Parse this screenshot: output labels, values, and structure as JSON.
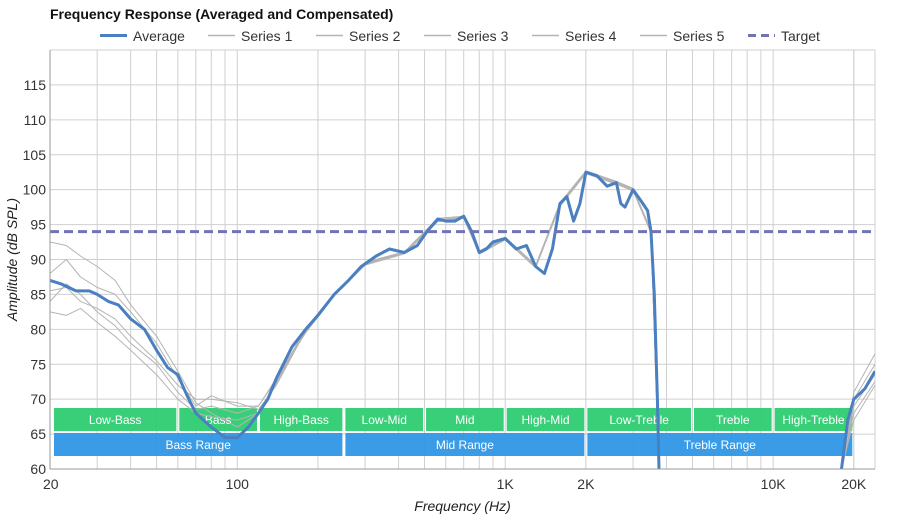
{
  "chart_data": {
    "type": "line",
    "title": "Frequency Response (Averaged and Compensated)",
    "xlabel": "Frequency (Hz)",
    "ylabel": "Amplitude (dB SPL)",
    "x_scale": "log",
    "xlim": [
      20,
      24000
    ],
    "ylim": [
      60,
      120
    ],
    "grid": true,
    "legend_position": "top",
    "x_tick_labels": [
      {
        "value": 20,
        "label": "20"
      },
      {
        "value": 100,
        "label": "100"
      },
      {
        "value": 1000,
        "label": "1K"
      },
      {
        "value": 2000,
        "label": "2K"
      },
      {
        "value": 10000,
        "label": "10K"
      },
      {
        "value": 20000,
        "label": "20K"
      }
    ],
    "y_ticks": [
      60,
      65,
      70,
      75,
      80,
      85,
      90,
      95,
      100,
      105,
      110,
      115
    ],
    "series": [
      {
        "name": "Average",
        "color": "#4a7fc1",
        "style": "solid",
        "role": "average",
        "points": [
          [
            20,
            87
          ],
          [
            22,
            86.5
          ],
          [
            25,
            85.5
          ],
          [
            28,
            85.5
          ],
          [
            30,
            85
          ],
          [
            33,
            84
          ],
          [
            36,
            83.5
          ],
          [
            40,
            81.5
          ],
          [
            45,
            80
          ],
          [
            50,
            77
          ],
          [
            55,
            74.5
          ],
          [
            60,
            73.5
          ],
          [
            65,
            70.5
          ],
          [
            70,
            68
          ],
          [
            80,
            66
          ],
          [
            90,
            64.5
          ],
          [
            100,
            64.5
          ],
          [
            110,
            66
          ],
          [
            120,
            68
          ],
          [
            130,
            70
          ],
          [
            140,
            73
          ],
          [
            160,
            77.5
          ],
          [
            180,
            80
          ],
          [
            200,
            82
          ],
          [
            230,
            85
          ],
          [
            260,
            87
          ],
          [
            290,
            89
          ],
          [
            330,
            90.5
          ],
          [
            370,
            91.5
          ],
          [
            420,
            91
          ],
          [
            470,
            92
          ],
          [
            510,
            94
          ],
          [
            560,
            95.8
          ],
          [
            600,
            95.5
          ],
          [
            650,
            95.5
          ],
          [
            700,
            96.2
          ],
          [
            750,
            94
          ],
          [
            800,
            91
          ],
          [
            850,
            91.5
          ],
          [
            900,
            92.5
          ],
          [
            1000,
            93
          ],
          [
            1100,
            91.5
          ],
          [
            1200,
            92
          ],
          [
            1300,
            89
          ],
          [
            1400,
            88
          ],
          [
            1500,
            91.5
          ],
          [
            1600,
            98
          ],
          [
            1700,
            99
          ],
          [
            1800,
            95.5
          ],
          [
            1900,
            98
          ],
          [
            2000,
            102.5
          ],
          [
            2200,
            102
          ],
          [
            2400,
            100.5
          ],
          [
            2600,
            101
          ],
          [
            2700,
            98
          ],
          [
            2800,
            97.5
          ],
          [
            3000,
            100
          ],
          [
            3200,
            98.5
          ],
          [
            3400,
            97
          ],
          [
            3500,
            94
          ],
          [
            3600,
            85
          ],
          [
            3700,
            70
          ],
          [
            3750,
            60
          ]
        ],
        "points_tail": [
          [
            18000,
            60
          ],
          [
            19000,
            67
          ],
          [
            20000,
            70
          ],
          [
            22000,
            71.5
          ],
          [
            24000,
            74
          ]
        ]
      },
      {
        "name": "Series 1",
        "color": "#b4b4b4",
        "style": "solid",
        "points": [
          [
            20,
            92.5
          ],
          [
            23,
            92
          ],
          [
            26,
            90.5
          ],
          [
            30,
            89
          ],
          [
            35,
            87
          ],
          [
            40,
            83.5
          ],
          [
            50,
            79
          ],
          [
            60,
            74
          ],
          [
            70,
            69.5
          ],
          [
            80,
            68
          ],
          [
            100,
            66
          ],
          [
            120,
            68
          ],
          [
            140,
            72.5
          ],
          [
            180,
            80
          ],
          [
            230,
            85
          ],
          [
            300,
            89.5
          ],
          [
            420,
            91
          ],
          [
            560,
            95.6
          ],
          [
            700,
            96
          ],
          [
            800,
            91
          ],
          [
            1000,
            93
          ],
          [
            1300,
            89
          ],
          [
            1600,
            97.6
          ],
          [
            2000,
            102.3
          ],
          [
            2600,
            100.8
          ],
          [
            3000,
            99.8
          ],
          [
            3500,
            94
          ],
          [
            3750,
            60
          ]
        ],
        "points_tail": [
          [
            18000,
            60
          ],
          [
            20000,
            71
          ],
          [
            24000,
            76.5
          ]
        ]
      },
      {
        "name": "Series 2",
        "color": "#b4b4b4",
        "style": "solid",
        "points": [
          [
            20,
            88
          ],
          [
            23,
            90
          ],
          [
            26,
            87.5
          ],
          [
            30,
            86
          ],
          [
            35,
            85
          ],
          [
            40,
            82.5
          ],
          [
            50,
            78
          ],
          [
            60,
            73
          ],
          [
            70,
            69
          ],
          [
            80,
            70.5
          ],
          [
            100,
            69
          ],
          [
            120,
            69
          ],
          [
            140,
            73
          ],
          [
            180,
            79.5
          ],
          [
            230,
            84.8
          ],
          [
            300,
            89.2
          ],
          [
            420,
            90.8
          ],
          [
            560,
            95.4
          ],
          [
            700,
            95.9
          ],
          [
            800,
            90.8
          ],
          [
            1000,
            92.8
          ],
          [
            1300,
            88.8
          ],
          [
            1600,
            97.8
          ],
          [
            2000,
            102.4
          ],
          [
            2600,
            100.9
          ],
          [
            3000,
            99.9
          ],
          [
            3500,
            93.8
          ],
          [
            3750,
            60
          ]
        ],
        "points_tail": [
          [
            18000,
            60
          ],
          [
            20000,
            70
          ],
          [
            24000,
            75
          ]
        ]
      },
      {
        "name": "Series 3",
        "color": "#b4b4b4",
        "style": "solid",
        "points": [
          [
            20,
            85.5
          ],
          [
            23,
            86
          ],
          [
            26,
            84
          ],
          [
            30,
            83
          ],
          [
            35,
            81.5
          ],
          [
            40,
            79
          ],
          [
            50,
            75.5
          ],
          [
            60,
            72
          ],
          [
            70,
            70
          ],
          [
            80,
            70
          ],
          [
            100,
            69.5
          ],
          [
            120,
            68.5
          ],
          [
            140,
            72
          ],
          [
            180,
            79.8
          ],
          [
            230,
            84.9
          ],
          [
            300,
            89.3
          ],
          [
            420,
            90.9
          ],
          [
            560,
            95.7
          ],
          [
            700,
            96.1
          ],
          [
            800,
            91.1
          ],
          [
            1000,
            93.1
          ],
          [
            1300,
            89.1
          ],
          [
            1600,
            97.9
          ],
          [
            2000,
            102.6
          ],
          [
            2600,
            101.1
          ],
          [
            3000,
            100.1
          ],
          [
            3500,
            94.1
          ],
          [
            3750,
            60
          ]
        ],
        "points_tail": [
          [
            18000,
            60
          ],
          [
            20000,
            69
          ],
          [
            24000,
            73.5
          ]
        ]
      },
      {
        "name": "Series 4",
        "color": "#b4b4b4",
        "style": "solid",
        "points": [
          [
            20,
            84
          ],
          [
            23,
            86.5
          ],
          [
            26,
            85
          ],
          [
            30,
            82.5
          ],
          [
            35,
            80.5
          ],
          [
            40,
            78
          ],
          [
            50,
            75
          ],
          [
            60,
            71
          ],
          [
            70,
            68.5
          ],
          [
            80,
            69
          ],
          [
            100,
            68
          ],
          [
            120,
            69
          ],
          [
            140,
            72.8
          ],
          [
            180,
            80.1
          ],
          [
            230,
            85.1
          ],
          [
            300,
            89.6
          ],
          [
            420,
            91.1
          ],
          [
            560,
            95.9
          ],
          [
            700,
            96.2
          ],
          [
            800,
            91.2
          ],
          [
            1000,
            93.2
          ],
          [
            1300,
            89.2
          ],
          [
            1600,
            98.1
          ],
          [
            2000,
            102.7
          ],
          [
            2600,
            101.2
          ],
          [
            3000,
            100.2
          ],
          [
            3500,
            94.2
          ],
          [
            3750,
            60
          ]
        ],
        "points_tail": [
          [
            18000,
            60
          ],
          [
            20000,
            68
          ],
          [
            24000,
            72.5
          ]
        ]
      },
      {
        "name": "Series 5",
        "color": "#b4b4b4",
        "style": "solid",
        "points": [
          [
            20,
            82.5
          ],
          [
            23,
            82
          ],
          [
            26,
            83
          ],
          [
            30,
            81
          ],
          [
            35,
            79
          ],
          [
            40,
            77
          ],
          [
            50,
            73.5
          ],
          [
            60,
            70
          ],
          [
            70,
            68
          ],
          [
            80,
            67.5
          ],
          [
            100,
            67
          ],
          [
            120,
            68
          ],
          [
            140,
            72.3
          ],
          [
            180,
            79.9
          ],
          [
            230,
            85
          ],
          [
            300,
            89.4
          ],
          [
            420,
            91
          ],
          [
            560,
            95.5
          ],
          [
            700,
            96
          ],
          [
            800,
            90.9
          ],
          [
            1000,
            92.9
          ],
          [
            1300,
            88.9
          ],
          [
            1600,
            97.7
          ],
          [
            2000,
            102.5
          ],
          [
            2600,
            101
          ],
          [
            3000,
            100
          ],
          [
            3500,
            94
          ],
          [
            3750,
            60
          ]
        ],
        "points_tail": [
          [
            18000,
            60
          ],
          [
            20000,
            67
          ],
          [
            24000,
            72
          ]
        ]
      },
      {
        "name": "Target",
        "color": "#7174b3",
        "style": "dashed",
        "points": [
          [
            20,
            94
          ],
          [
            24000,
            94
          ]
        ]
      }
    ],
    "bands": [
      {
        "label": "Low-Bass",
        "from": 20,
        "to": 60,
        "row": 1,
        "color": "#2ecc71"
      },
      {
        "label": "Bass",
        "from": 60,
        "to": 120,
        "row": 1,
        "color": "#2ecc71"
      },
      {
        "label": "High-Bass",
        "from": 120,
        "to": 250,
        "row": 1,
        "color": "#2ecc71"
      },
      {
        "label": "Low-Mid",
        "from": 250,
        "to": 500,
        "row": 1,
        "color": "#2ecc71"
      },
      {
        "label": "Mid",
        "from": 500,
        "to": 1000,
        "row": 1,
        "color": "#2ecc71"
      },
      {
        "label": "High-Mid",
        "from": 1000,
        "to": 2000,
        "row": 1,
        "color": "#2ecc71"
      },
      {
        "label": "Low-Treble",
        "from": 2000,
        "to": 5000,
        "row": 1,
        "color": "#2ecc71"
      },
      {
        "label": "Treble",
        "from": 5000,
        "to": 10000,
        "row": 1,
        "color": "#2ecc71"
      },
      {
        "label": "High-Treble",
        "from": 10000,
        "to": 20000,
        "row": 1,
        "color": "#2ecc71"
      },
      {
        "label": "Bass Range",
        "from": 20,
        "to": 250,
        "row": 2,
        "color": "#2f97e6"
      },
      {
        "label": "Mid Range",
        "from": 250,
        "to": 2000,
        "row": 2,
        "color": "#2f97e6"
      },
      {
        "label": "Treble Range",
        "from": 2000,
        "to": 20000,
        "row": 2,
        "color": "#2f97e6"
      }
    ]
  }
}
